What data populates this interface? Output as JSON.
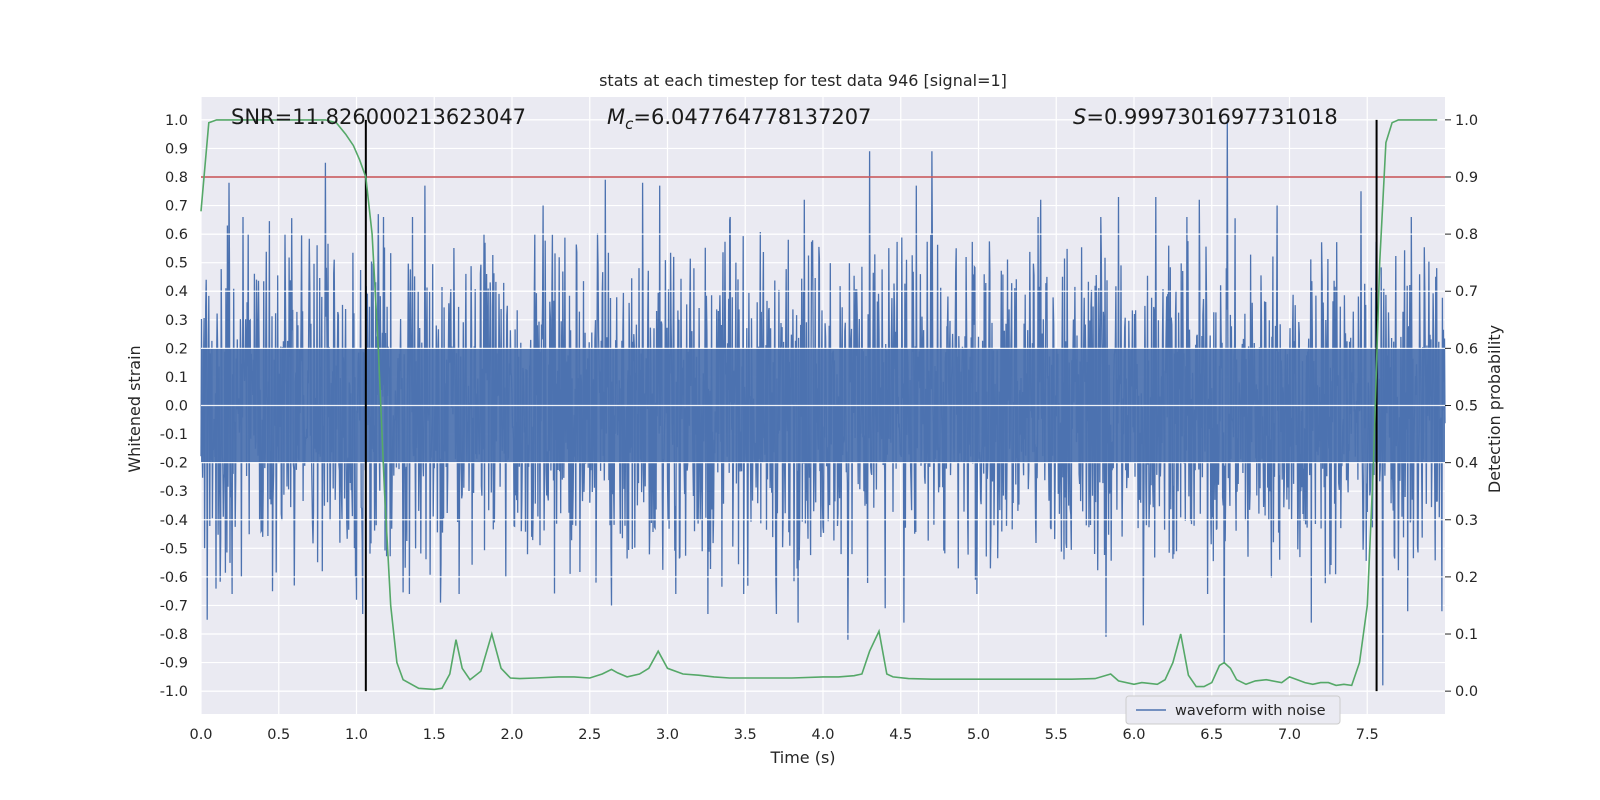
{
  "chart_data": {
    "type": "line",
    "title": "stats at each timestep for test data 946 [signal=1]",
    "xlabel": "Time (s)",
    "ylabel": "Whitened strain",
    "ylabel_right": "Detection probability",
    "xlim": [
      0.0,
      8.0
    ],
    "ylim": [
      -1.08,
      1.08
    ],
    "ylim_right": [
      -0.04,
      1.04
    ],
    "x_ticks": [
      "0.0",
      "0.5",
      "1.0",
      "1.5",
      "2.0",
      "2.5",
      "3.0",
      "3.5",
      "4.0",
      "4.5",
      "5.0",
      "5.5",
      "6.0",
      "6.5",
      "7.0",
      "7.5"
    ],
    "y_ticks": [
      "1.0",
      "0.9",
      "0.8",
      "0.7",
      "0.6",
      "0.5",
      "0.4",
      "0.3",
      "0.2",
      "0.1",
      "0.0",
      "-0.1",
      "-0.2",
      "-0.3",
      "-0.4",
      "-0.5",
      "-0.6",
      "-0.7",
      "-0.8",
      "-0.9",
      "-1.0"
    ],
    "y_ticks_right": [
      "1.0",
      "0.9",
      "0.8",
      "0.7",
      "0.6",
      "0.5",
      "0.4",
      "0.3",
      "0.2",
      "0.1",
      "0.0"
    ],
    "grid": true,
    "annotations": {
      "snr": "SNR=11.826000213623047",
      "mc_symbol": "M",
      "mc_sub": "c",
      "mc_value": "=6.047764778137207",
      "s_symbol": "S",
      "s_value": "=0.9997301697731018"
    },
    "threshold_line": {
      "y_right": 0.9,
      "color": "#c44e52"
    },
    "vertical_lines": {
      "x": [
        1.06,
        7.56
      ],
      "y_range": [
        -1.0,
        1.0
      ],
      "color": "#000000"
    },
    "series": [
      {
        "name": "waveform with noise",
        "color": "#4c72b0",
        "axis": "left",
        "description_values": {
          "typical_envelope": [
            -0.38,
            0.38
          ],
          "peak_max": 1.0,
          "peak_min": -0.98
        },
        "peaks_up": [
          [
            0.04,
            0.63
          ],
          [
            0.17,
            0.63
          ],
          [
            0.18,
            0.78
          ],
          [
            0.54,
            0.6
          ],
          [
            0.8,
            0.85
          ],
          [
            1.04,
            0.7
          ],
          [
            1.14,
            0.67
          ],
          [
            1.44,
            0.77
          ],
          [
            1.82,
            0.6
          ],
          [
            2.2,
            0.7
          ],
          [
            2.6,
            0.79
          ],
          [
            2.84,
            0.78
          ],
          [
            2.95,
            0.77
          ],
          [
            3.4,
            0.65
          ],
          [
            3.88,
            0.72
          ],
          [
            4.3,
            0.89
          ],
          [
            4.7,
            0.89
          ],
          [
            4.6,
            0.77
          ],
          [
            5.4,
            0.72
          ],
          [
            5.9,
            0.73
          ],
          [
            6.14,
            0.73
          ],
          [
            6.42,
            0.72
          ],
          [
            6.6,
            1.0
          ],
          [
            6.92,
            0.7
          ],
          [
            7.46,
            0.75
          ],
          [
            7.98,
            0.64
          ]
        ],
        "peaks_down": [
          [
            0.04,
            -0.75
          ],
          [
            0.26,
            -0.6
          ],
          [
            0.46,
            -0.65
          ],
          [
            0.6,
            -0.63
          ],
          [
            0.78,
            -0.58
          ],
          [
            1.0,
            -0.68
          ],
          [
            1.04,
            -0.73
          ],
          [
            1.54,
            -0.69
          ],
          [
            1.96,
            -0.6
          ],
          [
            2.54,
            -0.62
          ],
          [
            2.64,
            -0.7
          ],
          [
            3.26,
            -0.73
          ],
          [
            3.7,
            -0.73
          ],
          [
            3.84,
            -0.76
          ],
          [
            4.16,
            -0.82
          ],
          [
            4.4,
            -0.71
          ],
          [
            4.52,
            -0.76
          ],
          [
            4.98,
            -0.61
          ],
          [
            5.82,
            -0.81
          ],
          [
            6.06,
            -0.77
          ],
          [
            6.58,
            -0.9
          ],
          [
            7.14,
            -0.76
          ],
          [
            7.6,
            -0.98
          ],
          [
            7.76,
            -0.72
          ],
          [
            7.98,
            -0.72
          ]
        ]
      },
      {
        "name": "",
        "color": "#55a868",
        "axis": "right",
        "x": [
          0.0,
          0.05,
          0.1,
          0.2,
          0.4,
          0.6,
          0.8,
          0.87,
          0.93,
          0.98,
          1.02,
          1.06,
          1.1,
          1.14,
          1.18,
          1.22,
          1.26,
          1.3,
          1.4,
          1.5,
          1.55,
          1.6,
          1.64,
          1.68,
          1.73,
          1.8,
          1.87,
          1.93,
          1.99,
          2.05,
          2.15,
          2.3,
          2.4,
          2.5,
          2.58,
          2.64,
          2.68,
          2.74,
          2.82,
          2.88,
          2.94,
          3.0,
          3.1,
          3.2,
          3.3,
          3.4,
          3.6,
          3.8,
          4.0,
          4.1,
          4.2,
          4.25,
          4.3,
          4.36,
          4.41,
          4.45,
          4.55,
          4.7,
          4.85,
          5.0,
          5.2,
          5.4,
          5.6,
          5.75,
          5.85,
          5.9,
          6.0,
          6.05,
          6.15,
          6.2,
          6.25,
          6.3,
          6.35,
          6.4,
          6.45,
          6.5,
          6.55,
          6.58,
          6.62,
          6.66,
          6.72,
          6.78,
          6.85,
          6.95,
          7.0,
          7.05,
          7.1,
          7.15,
          7.2,
          7.25,
          7.3,
          7.35,
          7.4,
          7.45,
          7.5,
          7.54,
          7.58,
          7.62,
          7.66,
          7.7,
          7.75,
          7.8,
          7.95
        ],
        "values": [
          0.84,
          0.995,
          1.0,
          1.0,
          1.0,
          1.0,
          1.0,
          0.995,
          0.975,
          0.955,
          0.93,
          0.9,
          0.8,
          0.6,
          0.35,
          0.15,
          0.05,
          0.02,
          0.005,
          0.003,
          0.005,
          0.03,
          0.09,
          0.04,
          0.02,
          0.035,
          0.1,
          0.04,
          0.023,
          0.022,
          0.023,
          0.025,
          0.025,
          0.023,
          0.03,
          0.038,
          0.032,
          0.025,
          0.03,
          0.04,
          0.07,
          0.04,
          0.03,
          0.028,
          0.025,
          0.023,
          0.023,
          0.023,
          0.025,
          0.025,
          0.027,
          0.03,
          0.07,
          0.105,
          0.03,
          0.025,
          0.022,
          0.021,
          0.021,
          0.021,
          0.021,
          0.021,
          0.021,
          0.022,
          0.03,
          0.018,
          0.012,
          0.015,
          0.012,
          0.02,
          0.05,
          0.1,
          0.028,
          0.008,
          0.008,
          0.015,
          0.045,
          0.05,
          0.04,
          0.02,
          0.012,
          0.018,
          0.02,
          0.015,
          0.025,
          0.02,
          0.015,
          0.012,
          0.015,
          0.015,
          0.01,
          0.012,
          0.01,
          0.05,
          0.15,
          0.4,
          0.75,
          0.96,
          0.995,
          1.0,
          1.0,
          1.0,
          1.0
        ]
      }
    ],
    "legend": {
      "position": "lower-right",
      "entries": [
        "waveform with noise"
      ]
    }
  }
}
